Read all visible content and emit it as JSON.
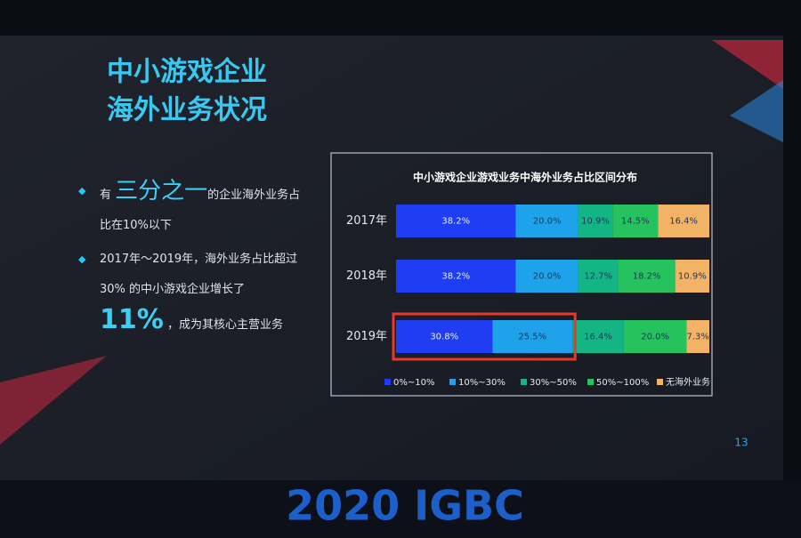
{
  "slide": {
    "title": [
      "中小游戏企业",
      "海外业务状况"
    ],
    "bullets": [
      {
        "pre": "有",
        "highlight": "三分之一",
        "post": "的企业海外业务占比在10%以下"
      },
      {
        "pre": "2017年～2019年，海外业务占比超过 30% 的中小游戏企业增长了",
        "highlight": "11%",
        "post": "，成为其核心主营业务"
      }
    ],
    "page_number": "13",
    "footer": "2020 IGBC"
  },
  "chart_data": {
    "type": "stacked-bar-horizontal",
    "title": "中小游戏企业游戏业务中海外业务占比区间分布",
    "categories": [
      "2017年",
      "2018年",
      "2019年"
    ],
    "series": [
      {
        "name": "0%~10%",
        "color": "#1f3df2",
        "values": [
          38.2,
          38.2,
          30.8
        ],
        "value_labels": [
          "38.2%",
          "38.2%",
          "30.8%"
        ]
      },
      {
        "name": "10%~30%",
        "color": "#1ea3ea",
        "values": [
          20.0,
          20.0,
          25.5
        ],
        "value_labels": [
          "20.0%",
          "20.0%",
          "25.5%"
        ]
      },
      {
        "name": "30%~50%",
        "color": "#13b585",
        "values": [
          10.9,
          12.7,
          16.4
        ],
        "value_labels": [
          "10.9%",
          "12.7%",
          "16.4%"
        ]
      },
      {
        "name": "50%~100%",
        "color": "#25c25e",
        "values": [
          14.5,
          18.2,
          20.0
        ],
        "value_labels": [
          "14.5%",
          "18.2%",
          "20.0%"
        ]
      },
      {
        "name": "无海外业务",
        "color": "#f2b366",
        "values": [
          16.4,
          10.9,
          7.3
        ],
        "value_labels": [
          "16.4%",
          "10.9%",
          "7.3%"
        ]
      }
    ],
    "legend": "bottom"
  }
}
